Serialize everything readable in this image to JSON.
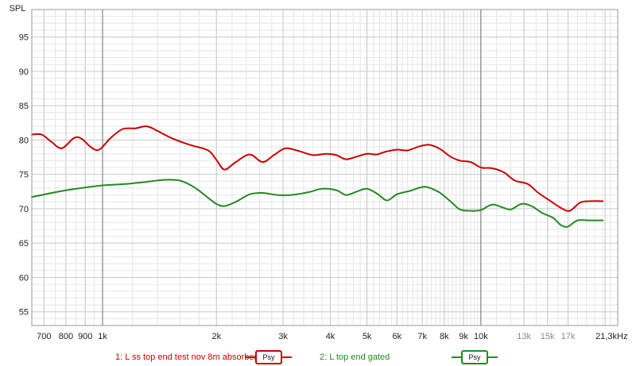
{
  "chart_data": {
    "type": "line",
    "ylabel": "SPL",
    "xunit": "kHz",
    "xscale": "log",
    "xlim": [
      650,
      23000
    ],
    "ylim": [
      53,
      99
    ],
    "grid": true,
    "y_ticks": [
      55,
      60,
      65,
      70,
      75,
      80,
      85,
      90,
      95
    ],
    "x_ticks": [
      {
        "value": 700,
        "label": "700"
      },
      {
        "value": 800,
        "label": "800"
      },
      {
        "value": 900,
        "label": "900"
      },
      {
        "value": 1000,
        "label": "1k"
      },
      {
        "value": 2000,
        "label": "2k"
      },
      {
        "value": 3000,
        "label": "3k"
      },
      {
        "value": 4000,
        "label": "4k"
      },
      {
        "value": 5000,
        "label": "5k"
      },
      {
        "value": 6000,
        "label": "6k"
      },
      {
        "value": 7000,
        "label": "7k"
      },
      {
        "value": 8000,
        "label": "8k"
      },
      {
        "value": 9000,
        "label": "9k"
      },
      {
        "value": 10000,
        "label": "10k"
      },
      {
        "value": 13000,
        "label": "13k",
        "muted": true
      },
      {
        "value": 15000,
        "label": "15k",
        "muted": true
      },
      {
        "value": 17000,
        "label": "17k",
        "muted": true
      },
      {
        "value": 21300,
        "label": "21,3kHz"
      }
    ],
    "series": [
      {
        "name": "1: L ss top end test nov 8m absorber",
        "color": "#cc0000",
        "points": [
          [
            650,
            80.8
          ],
          [
            690,
            80.8
          ],
          [
            730,
            79.8
          ],
          [
            780,
            78.8
          ],
          [
            840,
            80.3
          ],
          [
            880,
            80.2
          ],
          [
            930,
            79.0
          ],
          [
            980,
            78.6
          ],
          [
            1050,
            80.3
          ],
          [
            1130,
            81.6
          ],
          [
            1220,
            81.7
          ],
          [
            1310,
            82.0
          ],
          [
            1400,
            81.3
          ],
          [
            1520,
            80.3
          ],
          [
            1700,
            79.3
          ],
          [
            1900,
            78.5
          ],
          [
            2000,
            77.1
          ],
          [
            2100,
            75.7
          ],
          [
            2250,
            76.8
          ],
          [
            2450,
            77.9
          ],
          [
            2650,
            76.8
          ],
          [
            2850,
            77.9
          ],
          [
            3050,
            78.8
          ],
          [
            3300,
            78.4
          ],
          [
            3600,
            77.8
          ],
          [
            3900,
            78.0
          ],
          [
            4150,
            77.8
          ],
          [
            4400,
            77.2
          ],
          [
            4700,
            77.6
          ],
          [
            5000,
            78.0
          ],
          [
            5300,
            77.9
          ],
          [
            5600,
            78.3
          ],
          [
            6000,
            78.6
          ],
          [
            6400,
            78.5
          ],
          [
            6900,
            79.1
          ],
          [
            7300,
            79.3
          ],
          [
            7800,
            78.7
          ],
          [
            8300,
            77.6
          ],
          [
            8800,
            77.0
          ],
          [
            9400,
            76.8
          ],
          [
            10000,
            76.0
          ],
          [
            10700,
            75.9
          ],
          [
            11500,
            75.3
          ],
          [
            12300,
            74.1
          ],
          [
            13300,
            73.6
          ],
          [
            14200,
            72.3
          ],
          [
            15200,
            71.2
          ],
          [
            16300,
            70.1
          ],
          [
            17200,
            69.7
          ],
          [
            18300,
            70.9
          ],
          [
            19500,
            71.1
          ],
          [
            21000,
            71.1
          ]
        ]
      },
      {
        "name": "2: L top end gated",
        "color": "#228b22",
        "points": [
          [
            650,
            71.7
          ],
          [
            750,
            72.4
          ],
          [
            850,
            72.9
          ],
          [
            1000,
            73.4
          ],
          [
            1150,
            73.6
          ],
          [
            1300,
            73.9
          ],
          [
            1450,
            74.2
          ],
          [
            1600,
            74.1
          ],
          [
            1750,
            73.1
          ],
          [
            1900,
            71.6
          ],
          [
            2000,
            70.7
          ],
          [
            2100,
            70.4
          ],
          [
            2250,
            71.0
          ],
          [
            2450,
            72.1
          ],
          [
            2650,
            72.3
          ],
          [
            2900,
            72.0
          ],
          [
            3150,
            72.0
          ],
          [
            3500,
            72.4
          ],
          [
            3800,
            72.9
          ],
          [
            4150,
            72.7
          ],
          [
            4400,
            72.0
          ],
          [
            4700,
            72.5
          ],
          [
            5000,
            72.9
          ],
          [
            5350,
            72.1
          ],
          [
            5650,
            71.2
          ],
          [
            6000,
            72.1
          ],
          [
            6500,
            72.6
          ],
          [
            7100,
            73.2
          ],
          [
            7700,
            72.5
          ],
          [
            8300,
            71.1
          ],
          [
            8800,
            69.9
          ],
          [
            9400,
            69.7
          ],
          [
            10000,
            69.8
          ],
          [
            10700,
            70.6
          ],
          [
            11400,
            70.2
          ],
          [
            12000,
            69.9
          ],
          [
            12800,
            70.7
          ],
          [
            13600,
            70.4
          ],
          [
            14500,
            69.4
          ],
          [
            15500,
            68.7
          ],
          [
            16300,
            67.6
          ],
          [
            17000,
            67.4
          ],
          [
            18000,
            68.3
          ],
          [
            19500,
            68.3
          ],
          [
            21000,
            68.3
          ]
        ]
      }
    ]
  },
  "legend": [
    {
      "label": "1: L ss top end test nov 8m absorber",
      "badge": "Psy",
      "color": "#cc0000"
    },
    {
      "label": "2: L top end gated",
      "badge": "Psy",
      "color": "#228b22"
    }
  ]
}
